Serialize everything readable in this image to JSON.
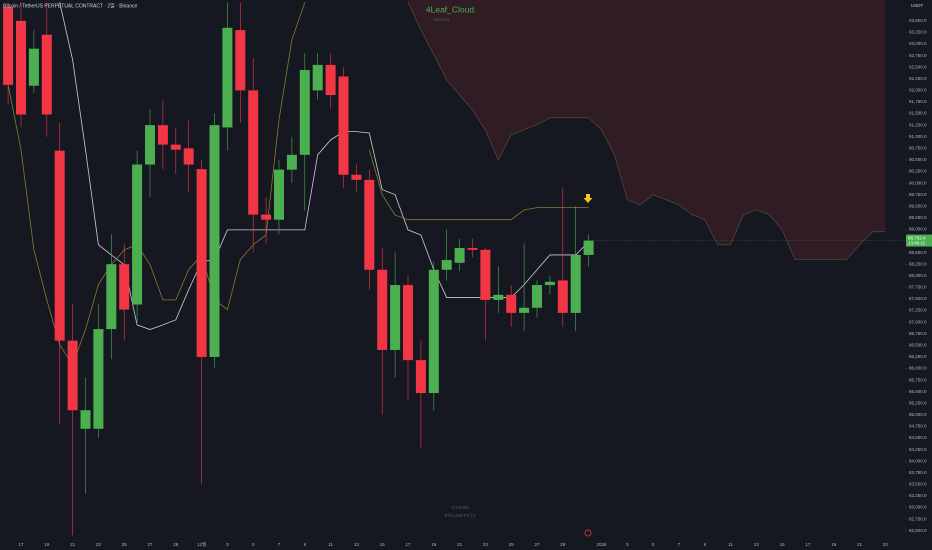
{
  "chart_data": {
    "type": "candlestick",
    "title": "Bitcoin / TetherUS PERPETUAL CONTRACT · 2일 · Binance",
    "indicator": "4Leaf_Cloud",
    "indicator_subtitle": "TRADER",
    "bottom_date": "1/1/2026",
    "bottom_symbol": "BTCUSDT.P | 0",
    "currency": "USDT",
    "last_price_label": "88,762.4",
    "countdown": "13:45:11",
    "up_color": "#4caf50",
    "down_color": "#f23645",
    "categories": [
      null,
      "17",
      null,
      "19",
      null,
      "21",
      null,
      "23",
      null,
      "25",
      null,
      "27",
      null,
      "29",
      null,
      "12월",
      null,
      "3",
      null,
      "5",
      null,
      "7",
      null,
      "9",
      null,
      "11",
      null,
      "13",
      null,
      "15",
      null,
      "17",
      null,
      "19",
      null,
      "21",
      null,
      "23",
      null,
      "25",
      null,
      "27",
      null,
      "29",
      null,
      null,
      "2026",
      null,
      "3",
      null,
      "5",
      null,
      "7",
      null,
      "9",
      null,
      "11",
      null,
      "13",
      null,
      "15",
      null,
      "17",
      null,
      "19",
      null,
      "21",
      null,
      "23"
    ],
    "open": [
      93800,
      93500,
      92100,
      93200,
      90700,
      86600,
      84700,
      84700,
      86850,
      88250,
      87380,
      90400,
      91250,
      90830,
      90750,
      90300,
      86250,
      91200,
      93300,
      92000,
      89320,
      89210,
      90290,
      90610,
      92000,
      92550,
      92300,
      90180,
      90070,
      88130,
      86400,
      87800,
      86180,
      85470,
      88130,
      88280,
      88600,
      88560,
      87480,
      87590,
      87200,
      87310,
      87800,
      87900,
      87200,
      88450,
      null,
      null,
      null,
      null,
      null,
      null,
      null,
      null,
      null,
      null,
      null,
      null,
      null,
      null,
      null,
      null,
      null,
      null,
      null,
      null,
      null,
      null,
      null
    ],
    "high": [
      93900,
      93900,
      93300,
      93900,
      91300,
      87400,
      85800,
      87400,
      88900,
      88700,
      90700,
      91600,
      91800,
      91200,
      91350,
      90500,
      91500,
      93900,
      93900,
      92700,
      89700,
      90500,
      91000,
      92800,
      92800,
      92800,
      92500,
      90400,
      90300,
      88600,
      88500,
      88000,
      86600,
      88300,
      89000,
      88800,
      88800,
      88600,
      88200,
      87800,
      88700,
      87900,
      88000,
      89900,
      89500,
      88900,
      null,
      null,
      null,
      null,
      null,
      null,
      null,
      null,
      null,
      null,
      null,
      null,
      null,
      null,
      null,
      null,
      null,
      null,
      null,
      null,
      null,
      null,
      null
    ],
    "low": [
      91700,
      91200,
      91950,
      91000,
      84800,
      82400,
      83300,
      84500,
      86200,
      86600,
      87000,
      89700,
      90300,
      90200,
      89800,
      83500,
      86000,
      90700,
      91300,
      88500,
      88700,
      88900,
      90000,
      89400,
      91800,
      91600,
      89900,
      89800,
      87700,
      85000,
      85800,
      85300,
      84300,
      85100,
      87900,
      88100,
      88400,
      86600,
      87200,
      86900,
      86800,
      87100,
      87600,
      86900,
      86800,
      88200,
      null,
      null,
      null,
      null,
      null,
      null,
      null,
      null,
      null,
      null,
      null,
      null,
      null,
      null,
      null,
      null,
      null,
      null,
      null,
      null,
      null,
      null,
      null
    ],
    "close": [
      92120,
      91480,
      92900,
      91480,
      86600,
      85100,
      85100,
      86850,
      88250,
      87270,
      90400,
      91250,
      90830,
      90720,
      90400,
      86250,
      91250,
      93350,
      92000,
      89320,
      89210,
      90290,
      90610,
      92440,
      92550,
      91900,
      90180,
      90070,
      88130,
      86400,
      87800,
      86180,
      85470,
      88130,
      88340,
      88600,
      88560,
      87480,
      87590,
      87200,
      87310,
      87800,
      87870,
      87200,
      88450,
      88760,
      null,
      null,
      null,
      null,
      null,
      null,
      null,
      null,
      null,
      null,
      null,
      null,
      null,
      null,
      null,
      null,
      null,
      null,
      null,
      null,
      null,
      null,
      null
    ],
    "lines": [
      {
        "color": "#c9ccd6",
        "values": [
          null,
          null,
          null,
          null,
          93900,
          92660,
          90720,
          88670,
          88450,
          88240,
          86940,
          86840,
          86940,
          87050,
          87700,
          88300,
          88350,
          88990,
          88990,
          88990,
          88990,
          88990,
          88990,
          88990,
          90610,
          90930,
          91110,
          91110,
          91080,
          89860,
          89750,
          88990,
          88880,
          88130,
          87530,
          87530,
          87530,
          87530,
          87530,
          87530,
          87810,
          88130,
          88450,
          88450,
          88450,
          88730,
          null,
          null,
          null,
          null,
          null,
          null,
          null,
          null,
          null,
          null,
          null,
          null,
          null,
          null,
          null,
          null,
          null,
          null,
          null,
          null,
          null,
          null,
          null
        ]
      },
      {
        "color": "#8a7a2a",
        "values": [
          92120,
          90720,
          88560,
          87480,
          86510,
          86080,
          86840,
          87810,
          88240,
          88560,
          88670,
          88240,
          87480,
          87480,
          88130,
          88450,
          87480,
          87270,
          88350,
          88670,
          88880,
          91370,
          93090,
          93900,
          null,
          null,
          null,
          null,
          null,
          null,
          null,
          null,
          null,
          null,
          null,
          null,
          null,
          null,
          null,
          null,
          null,
          null,
          null,
          null,
          null,
          null,
          null,
          null,
          null,
          null,
          null,
          null,
          null,
          null,
          null,
          null,
          null,
          null,
          null,
          null,
          null,
          null,
          null,
          null,
          null,
          null,
          null,
          null,
          null
        ]
      },
      {
        "color": "#8a7a2a",
        "values": [
          null,
          null,
          null,
          null,
          null,
          null,
          null,
          null,
          null,
          null,
          null,
          null,
          null,
          null,
          null,
          null,
          null,
          null,
          null,
          null,
          null,
          null,
          null,
          null,
          null,
          null,
          null,
          null,
          90720,
          89750,
          89310,
          89210,
          89210,
          89210,
          89210,
          89210,
          89210,
          89210,
          89210,
          89210,
          89420,
          89470,
          89470,
          89470,
          89470,
          89470,
          null,
          null,
          null,
          null,
          null,
          null,
          null,
          null,
          null,
          null,
          null,
          null,
          null,
          null,
          null,
          null,
          null,
          null,
          null,
          null,
          null,
          null,
          null
        ]
      }
    ],
    "cloud": {
      "color": "#2f1c24",
      "edge_color": "#5b4a3a",
      "values": [
        null,
        null,
        null,
        null,
        null,
        null,
        null,
        null,
        null,
        null,
        null,
        null,
        null,
        null,
        null,
        null,
        null,
        null,
        null,
        null,
        null,
        null,
        null,
        null,
        null,
        null,
        null,
        null,
        null,
        null,
        null,
        93900,
        93310,
        92770,
        92230,
        91900,
        91580,
        91150,
        90500,
        91040,
        91150,
        91260,
        91410,
        91410,
        91410,
        91410,
        91150,
        90610,
        89640,
        89530,
        89750,
        89640,
        89530,
        89320,
        89210,
        88670,
        88670,
        89320,
        89420,
        89320,
        88990,
        88350,
        88350,
        88350,
        88350,
        88350,
        88670,
        88950,
        88950
      ]
    },
    "ylim": [
      82300,
      93950
    ],
    "yticks": [
      {
        "value": 82500,
        "label": "82,500.0"
      },
      {
        "value": 82750,
        "label": "82,750.0"
      },
      {
        "value": 83000,
        "label": "83,000.0"
      },
      {
        "value": 83250,
        "label": "83,250.0"
      },
      {
        "value": 83500,
        "label": "83,500.0"
      },
      {
        "value": 83750,
        "label": "83,750.0"
      },
      {
        "value": 84000,
        "label": "84,000.0"
      },
      {
        "value": 84250,
        "label": "84,250.0"
      },
      {
        "value": 84500,
        "label": "84,500.0"
      },
      {
        "value": 84750,
        "label": "84,750.0"
      },
      {
        "value": 85000,
        "label": "85,000.0"
      },
      {
        "value": 85250,
        "label": "85,250.0"
      },
      {
        "value": 85500,
        "label": "85,500.0"
      },
      {
        "value": 85750,
        "label": "85,750.0"
      },
      {
        "value": 86000,
        "label": "86,000.0"
      },
      {
        "value": 86250,
        "label": "86,250.0"
      },
      {
        "value": 86500,
        "label": "86,500.0"
      },
      {
        "value": 86750,
        "label": "86,750.0"
      },
      {
        "value": 87000,
        "label": "87,000.0"
      },
      {
        "value": 87250,
        "label": "87,250.0"
      },
      {
        "value": 87500,
        "label": "87,500.0"
      },
      {
        "value": 87750,
        "label": "87,750.0"
      },
      {
        "value": 88000,
        "label": "88,000.0"
      },
      {
        "value": 88250,
        "label": "88,250.0"
      },
      {
        "value": 88500,
        "label": "88,500.0"
      },
      {
        "value": 89000,
        "label": "89,000.0"
      },
      {
        "value": 89250,
        "label": "89,250.0"
      },
      {
        "value": 89500,
        "label": "89,500.0"
      },
      {
        "value": 89750,
        "label": "89,750.0"
      },
      {
        "value": 90000,
        "label": "90,000.0"
      },
      {
        "value": 90250,
        "label": "90,250.0"
      },
      {
        "value": 90500,
        "label": "90,500.0"
      },
      {
        "value": 90750,
        "label": "90,750.0"
      },
      {
        "value": 91000,
        "label": "91,000.0"
      },
      {
        "value": 91250,
        "label": "91,250.0"
      },
      {
        "value": 91500,
        "label": "91,500.0"
      },
      {
        "value": 91750,
        "label": "91,750.0"
      },
      {
        "value": 92000,
        "label": "92,000.0"
      },
      {
        "value": 92250,
        "label": "92,250.0"
      },
      {
        "value": 92500,
        "label": "92,500.0"
      },
      {
        "value": 92750,
        "label": "92,750.0"
      },
      {
        "value": 93000,
        "label": "93,000.0"
      },
      {
        "value": 93250,
        "label": "93,250.0"
      },
      {
        "value": 93500,
        "label": "93,500.0"
      }
    ]
  }
}
